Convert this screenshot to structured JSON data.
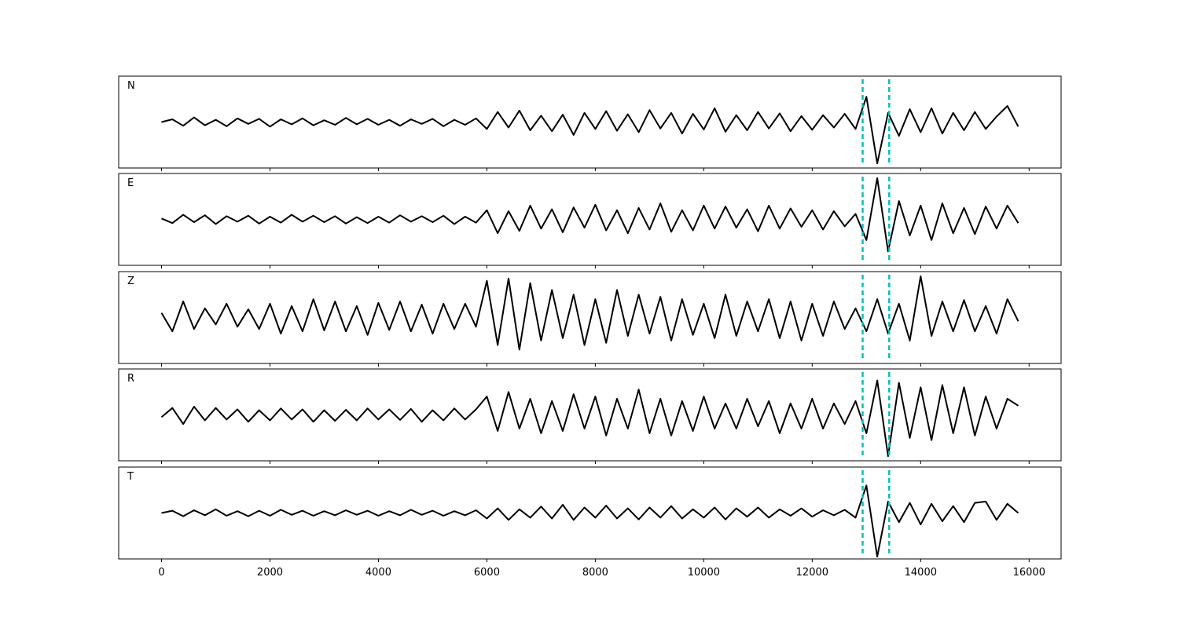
{
  "chart_data": [
    {
      "type": "line",
      "label": "N",
      "color": "#000000",
      "xlim": [
        -790,
        16590
      ],
      "ylim": [
        -1,
        1
      ],
      "xticks": [
        0,
        2000,
        4000,
        6000,
        8000,
        10000,
        12000,
        14000,
        16000
      ],
      "vlines": [
        12930,
        13420
      ],
      "vline_color": "#00bfbf",
      "x": [
        0,
        200,
        400,
        600,
        800,
        1000,
        1200,
        1400,
        1600,
        1800,
        2000,
        2200,
        2400,
        2600,
        2800,
        3000,
        3200,
        3400,
        3600,
        3800,
        4000,
        4200,
        4400,
        4600,
        4800,
        5000,
        5200,
        5400,
        5600,
        5800,
        6000,
        6200,
        6400,
        6600,
        6800,
        7000,
        7200,
        7400,
        7600,
        7800,
        8000,
        8200,
        8400,
        8600,
        8800,
        9000,
        9200,
        9400,
        9600,
        9800,
        10000,
        10200,
        10400,
        10600,
        10800,
        11000,
        11200,
        11400,
        11600,
        11800,
        12000,
        12200,
        12400,
        12600,
        12800,
        13000,
        13200,
        13400,
        13600,
        13800,
        14000,
        14200,
        14400,
        14600,
        14800,
        15000,
        15200,
        15400,
        15600,
        15800
      ],
      "values": [
        0,
        0.06,
        -0.08,
        0.1,
        -0.07,
        0.05,
        -0.09,
        0.08,
        -0.04,
        0.07,
        -0.1,
        0.06,
        -0.05,
        0.08,
        -0.07,
        0.04,
        -0.06,
        0.09,
        -0.05,
        0.07,
        -0.06,
        0.05,
        -0.08,
        0.06,
        -0.04,
        0.07,
        -0.09,
        0.05,
        -0.06,
        0.08,
        -0.15,
        0.22,
        -0.12,
        0.25,
        -0.18,
        0.14,
        -0.2,
        0.16,
        -0.28,
        0.2,
        -0.15,
        0.24,
        -0.19,
        0.17,
        -0.22,
        0.26,
        -0.14,
        0.2,
        -0.25,
        0.18,
        -0.16,
        0.3,
        -0.21,
        0.15,
        -0.18,
        0.22,
        -0.14,
        0.19,
        -0.2,
        0.13,
        -0.17,
        0.15,
        -0.12,
        0.18,
        -0.15,
        0.55,
        -0.9,
        0.2,
        -0.3,
        0.28,
        -0.22,
        0.3,
        -0.25,
        0.2,
        -0.18,
        0.22,
        -0.15,
        0.12,
        0.35,
        -0.1
      ]
    },
    {
      "type": "line",
      "label": "E",
      "color": "#000000",
      "xlim": [
        -790,
        16590
      ],
      "ylim": [
        -1,
        1
      ],
      "xticks": [
        0,
        2000,
        4000,
        6000,
        8000,
        10000,
        12000,
        14000,
        16000
      ],
      "vlines": [
        12930,
        13420
      ],
      "vline_color": "#00bfbf",
      "x": [
        0,
        200,
        400,
        600,
        800,
        1000,
        1200,
        1400,
        1600,
        1800,
        2000,
        2200,
        2400,
        2600,
        2800,
        3000,
        3200,
        3400,
        3600,
        3800,
        4000,
        4200,
        4400,
        4600,
        4800,
        5000,
        5200,
        5400,
        5600,
        5800,
        6000,
        6200,
        6400,
        6600,
        6800,
        7000,
        7200,
        7400,
        7600,
        7800,
        8000,
        8200,
        8400,
        8600,
        8800,
        9000,
        9200,
        9400,
        9600,
        9800,
        10000,
        10200,
        10400,
        10600,
        10800,
        11000,
        11200,
        11400,
        11600,
        11800,
        12000,
        12200,
        12400,
        12600,
        12800,
        13000,
        13200,
        13400,
        13600,
        13800,
        14000,
        14200,
        14400,
        14600,
        14800,
        15000,
        15200,
        15400,
        15600,
        15800
      ],
      "values": [
        0.02,
        -0.08,
        0.1,
        -0.06,
        0.09,
        -0.1,
        0.07,
        -0.05,
        0.08,
        -0.09,
        0.06,
        -0.07,
        0.1,
        -0.05,
        0.08,
        -0.06,
        0.07,
        -0.09,
        0.05,
        -0.08,
        0.06,
        -0.07,
        0.09,
        -0.05,
        0.07,
        -0.06,
        0.08,
        -0.1,
        0.06,
        -0.07,
        0.2,
        -0.3,
        0.18,
        -0.25,
        0.3,
        -0.2,
        0.22,
        -0.28,
        0.26,
        -0.18,
        0.32,
        -0.24,
        0.2,
        -0.3,
        0.25,
        -0.22,
        0.35,
        -0.27,
        0.2,
        -0.24,
        0.3,
        -0.2,
        0.28,
        -0.18,
        0.22,
        -0.26,
        0.3,
        -0.2,
        0.24,
        -0.16,
        0.2,
        -0.22,
        0.18,
        -0.15,
        0.12,
        -0.45,
        0.9,
        -0.7,
        0.4,
        -0.35,
        0.3,
        -0.45,
        0.35,
        -0.3,
        0.25,
        -0.32,
        0.28,
        -0.2,
        0.3,
        -0.08
      ]
    },
    {
      "type": "line",
      "label": "Z",
      "color": "#000000",
      "xlim": [
        -790,
        16590
      ],
      "ylim": [
        -1,
        1
      ],
      "xticks": [
        0,
        2000,
        4000,
        6000,
        8000,
        10000,
        12000,
        14000,
        16000
      ],
      "vlines": [
        12930,
        13420
      ],
      "vline_color": "#00bfbf",
      "x": [
        0,
        200,
        400,
        600,
        800,
        1000,
        1200,
        1400,
        1600,
        1800,
        2000,
        2200,
        2400,
        2600,
        2800,
        3000,
        3200,
        3400,
        3600,
        3800,
        4000,
        4200,
        4400,
        4600,
        4800,
        5000,
        5200,
        5400,
        5600,
        5800,
        6000,
        6200,
        6400,
        6600,
        6800,
        7000,
        7200,
        7400,
        7600,
        7800,
        8000,
        8200,
        8400,
        8600,
        8800,
        9000,
        9200,
        9400,
        9600,
        9800,
        10000,
        10200,
        10400,
        10600,
        10800,
        11000,
        11200,
        11400,
        11600,
        11800,
        12000,
        12200,
        12400,
        12600,
        12800,
        13000,
        13200,
        13400,
        13600,
        13800,
        14000,
        14200,
        14400,
        14600,
        14800,
        15000,
        15200,
        15400,
        15600,
        15800
      ],
      "values": [
        0.1,
        -0.3,
        0.35,
        -0.25,
        0.2,
        -0.15,
        0.3,
        -0.2,
        0.18,
        -0.25,
        0.3,
        -0.35,
        0.25,
        -0.3,
        0.4,
        -0.28,
        0.35,
        -0.3,
        0.25,
        -0.38,
        0.32,
        -0.27,
        0.35,
        -0.3,
        0.28,
        -0.35,
        0.3,
        -0.25,
        0.3,
        -0.2,
        0.8,
        -0.6,
        0.85,
        -0.7,
        0.75,
        -0.5,
        0.6,
        -0.45,
        0.5,
        -0.6,
        0.4,
        -0.55,
        0.6,
        -0.4,
        0.5,
        -0.35,
        0.45,
        -0.5,
        0.4,
        -0.38,
        0.3,
        -0.45,
        0.5,
        -0.4,
        0.35,
        -0.3,
        0.4,
        -0.45,
        0.35,
        -0.5,
        0.3,
        -0.4,
        0.35,
        -0.25,
        0.2,
        -0.3,
        0.4,
        -0.35,
        0.3,
        -0.5,
        0.9,
        -0.4,
        0.35,
        -0.3,
        0.38,
        -0.3,
        0.25,
        -0.35,
        0.4,
        -0.08
      ]
    },
    {
      "type": "line",
      "label": "R",
      "color": "#000000",
      "xlim": [
        -790,
        16590
      ],
      "ylim": [
        -1,
        1
      ],
      "xticks": [
        0,
        2000,
        4000,
        6000,
        8000,
        10000,
        12000,
        14000,
        16000
      ],
      "vlines": [
        12930,
        13420
      ],
      "vline_color": "#00bfbf",
      "x": [
        0,
        200,
        400,
        600,
        800,
        1000,
        1200,
        1400,
        1600,
        1800,
        2000,
        2200,
        2400,
        2600,
        2800,
        3000,
        3200,
        3400,
        3600,
        3800,
        4000,
        4200,
        4400,
        4600,
        4800,
        5000,
        5200,
        5400,
        5600,
        5800,
        6000,
        6200,
        6400,
        6600,
        6800,
        7000,
        7200,
        7400,
        7600,
        7800,
        8000,
        8200,
        8400,
        8600,
        8800,
        9000,
        9200,
        9400,
        9600,
        9800,
        10000,
        10200,
        10400,
        10600,
        10800,
        11000,
        11200,
        11400,
        11600,
        11800,
        12000,
        12200,
        12400,
        12600,
        12800,
        13000,
        13200,
        13400,
        13600,
        13800,
        14000,
        14200,
        14400,
        14600,
        14800,
        15000,
        15200,
        15400,
        15600,
        15800
      ],
      "values": [
        -0.05,
        0.15,
        -0.2,
        0.18,
        -0.12,
        0.15,
        -0.1,
        0.12,
        -0.15,
        0.1,
        -0.12,
        0.14,
        -0.1,
        0.12,
        -0.15,
        0.1,
        -0.13,
        0.11,
        -0.12,
        0.14,
        -0.1,
        0.12,
        -0.11,
        0.13,
        -0.15,
        0.1,
        -0.12,
        0.14,
        -0.1,
        0.12,
        0.4,
        -0.35,
        0.5,
        -0.3,
        0.35,
        -0.4,
        0.3,
        -0.35,
        0.45,
        -0.3,
        0.4,
        -0.45,
        0.35,
        -0.3,
        0.55,
        -0.4,
        0.35,
        -0.45,
        0.3,
        -0.35,
        0.4,
        -0.3,
        0.25,
        -0.3,
        0.35,
        -0.25,
        0.3,
        -0.4,
        0.25,
        -0.3,
        0.35,
        -0.3,
        0.25,
        -0.2,
        0.3,
        -0.4,
        0.75,
        -0.9,
        0.7,
        -0.5,
        0.6,
        -0.55,
        0.65,
        -0.4,
        0.6,
        -0.45,
        0.4,
        -0.3,
        0.35,
        0.2
      ]
    },
    {
      "type": "line",
      "label": "T",
      "color": "#000000",
      "xlim": [
        -790,
        16590
      ],
      "ylim": [
        -1,
        1
      ],
      "xticks": [
        0,
        2000,
        4000,
        6000,
        8000,
        10000,
        12000,
        14000,
        16000
      ],
      "vlines": [
        12930,
        13420
      ],
      "vline_color": "#00bfbf",
      "x": [
        0,
        200,
        400,
        600,
        800,
        1000,
        1200,
        1400,
        1600,
        1800,
        2000,
        2200,
        2400,
        2600,
        2800,
        3000,
        3200,
        3400,
        3600,
        3800,
        4000,
        4200,
        4400,
        4600,
        4800,
        5000,
        5200,
        5400,
        5600,
        5800,
        6000,
        6200,
        6400,
        6600,
        6800,
        7000,
        7200,
        7400,
        7600,
        7800,
        8000,
        8200,
        8400,
        8600,
        8800,
        9000,
        9200,
        9400,
        9600,
        9800,
        10000,
        10200,
        10400,
        10600,
        10800,
        11000,
        11200,
        11400,
        11600,
        11800,
        12000,
        12200,
        12400,
        12600,
        12800,
        13000,
        13200,
        13400,
        13600,
        13800,
        14000,
        14200,
        14400,
        14600,
        14800,
        15000,
        15200,
        15400,
        15600,
        15800
      ],
      "values": [
        0,
        0.05,
        -0.07,
        0.06,
        -0.05,
        0.08,
        -0.06,
        0.04,
        -0.07,
        0.05,
        -0.06,
        0.07,
        -0.04,
        0.05,
        -0.06,
        0.04,
        -0.05,
        0.06,
        -0.04,
        0.05,
        -0.06,
        0.04,
        -0.05,
        0.07,
        -0.04,
        0.05,
        -0.06,
        0.04,
        -0.05,
        0.06,
        -0.12,
        0.1,
        -0.15,
        0.08,
        -0.1,
        0.14,
        -0.12,
        0.18,
        -0.15,
        0.12,
        -0.1,
        0.16,
        -0.12,
        0.1,
        -0.14,
        0.12,
        -0.1,
        0.15,
        -0.12,
        0.08,
        -0.1,
        0.12,
        -0.14,
        0.1,
        -0.08,
        0.12,
        -0.1,
        0.08,
        -0.06,
        0.1,
        -0.08,
        0.06,
        -0.05,
        0.07,
        -0.1,
        0.6,
        -0.95,
        0.25,
        -0.2,
        0.22,
        -0.25,
        0.2,
        -0.18,
        0.15,
        -0.2,
        0.22,
        0.25,
        -0.15,
        0.2,
        0
      ]
    }
  ]
}
